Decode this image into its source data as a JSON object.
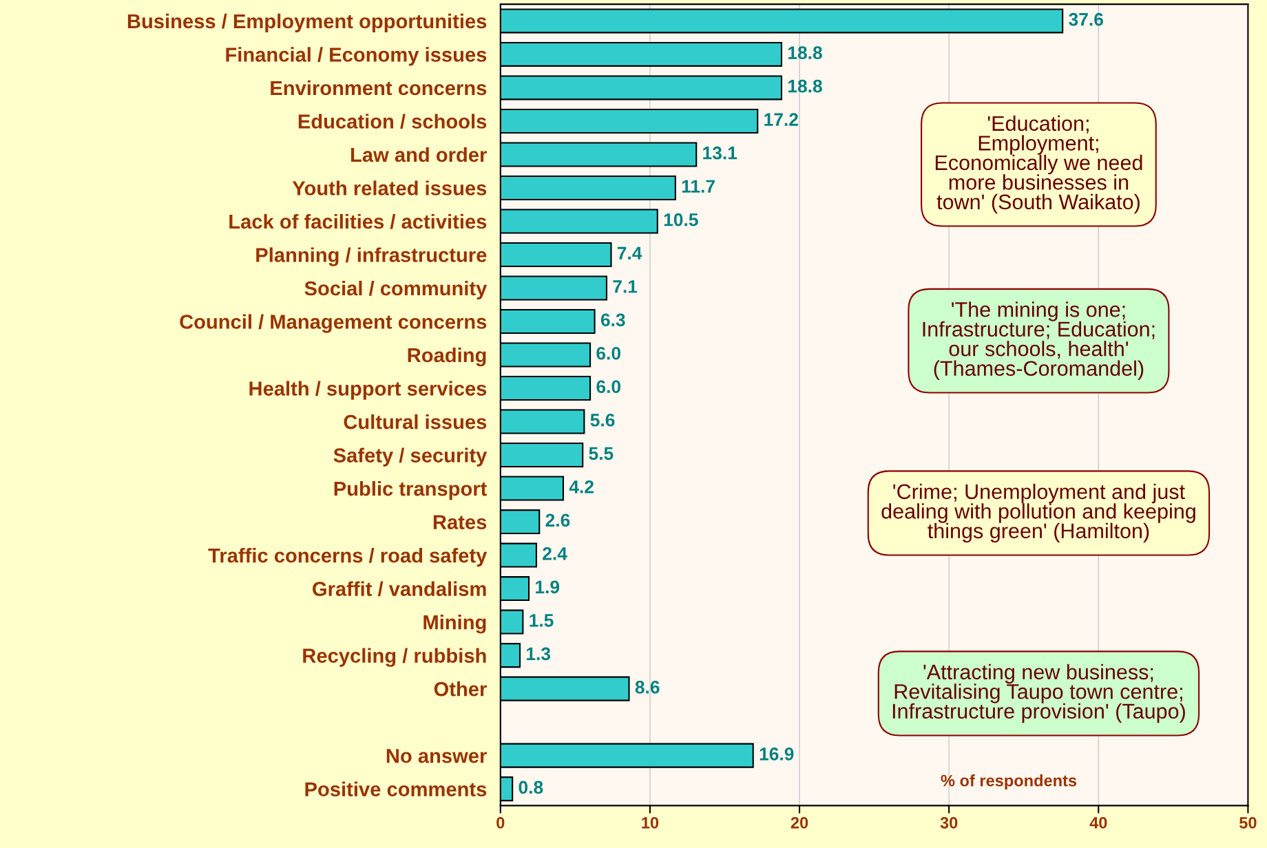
{
  "chart_data": {
    "type": "bar",
    "orientation": "horizontal",
    "categories": [
      "Business / Employment opportunities",
      "Financial / Economy issues",
      "Environment concerns",
      "Education / schools",
      "Law and order",
      "Youth related issues",
      "Lack of facilities / activities",
      "Planning / infrastructure",
      "Social / community",
      "Council / Management concerns",
      "Roading",
      "Health / support services",
      "Cultural issues",
      "Safety / security",
      "Public transport",
      "Rates",
      "Traffic concerns / road safety",
      "Graffit / vandalism",
      "Mining",
      "Recycling / rubbish",
      "Other",
      null,
      "No answer",
      "Positive comments"
    ],
    "values": [
      37.6,
      18.8,
      18.8,
      17.2,
      13.1,
      11.7,
      10.5,
      7.4,
      7.1,
      6.3,
      6.0,
      6.0,
      5.6,
      5.5,
      4.2,
      2.6,
      2.4,
      1.9,
      1.5,
      1.3,
      8.6,
      null,
      16.9,
      0.8
    ],
    "color": "#33cccc",
    "value_labels": [
      "37.6",
      "18.8",
      "18.8",
      "17.2",
      "13.1",
      "11.7",
      "10.5",
      "7.4",
      "7.1",
      "6.3",
      "6.0",
      "6.0",
      "5.6",
      "5.5",
      "4.2",
      "2.6",
      "2.4",
      "1.9",
      "1.5",
      "1.3",
      "8.6",
      null,
      "16.9",
      "0.8"
    ],
    "xlabel": "% of respondents",
    "xlim": [
      0,
      50
    ],
    "xticks": [
      0,
      10,
      20,
      30,
      40,
      50
    ],
    "grid": "x",
    "annotations": [
      "'Education;\nEmployment;\nEconomically we need\nmore businesses in\ntown' (South Waikato)",
      "'The mining is one;\nInfrastructure; Education;\nour schools, health'\n(Thames-Coromandel)",
      "'Crime; Unemployment and just\ndealing with pollution and keeping\nthings green' (Hamilton)",
      "'Attracting new business;\nRevitalising Taupo town centre;\nInfrastructure provision' (Taupo)"
    ]
  }
}
